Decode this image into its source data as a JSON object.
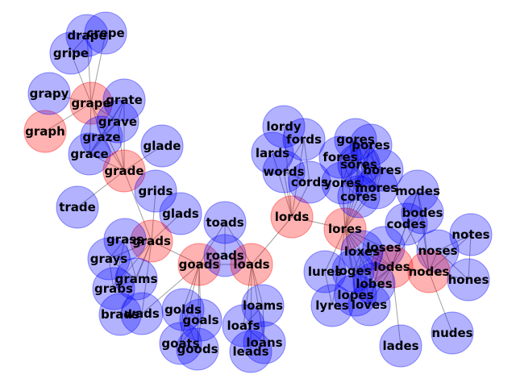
{
  "colors": {
    "highlight": "#ff0000",
    "normal": "#0000ff",
    "edge": "#808080"
  },
  "nodes": [
    {
      "id": "grape",
      "label": "grape",
      "highlight": true
    },
    {
      "id": "graph",
      "label": "graph",
      "highlight": true
    },
    {
      "id": "grapy",
      "label": "grapy",
      "highlight": false
    },
    {
      "id": "gripe",
      "label": "gripe",
      "highlight": false
    },
    {
      "id": "drape",
      "label": "drape",
      "highlight": false
    },
    {
      "id": "crepe",
      "label": "crepe",
      "highlight": false
    },
    {
      "id": "grate",
      "label": "grate",
      "highlight": false
    },
    {
      "id": "grave",
      "label": "grave",
      "highlight": false
    },
    {
      "id": "graze",
      "label": "graze",
      "highlight": false
    },
    {
      "id": "grace",
      "label": "grace",
      "highlight": false
    },
    {
      "id": "grade",
      "label": "grade",
      "highlight": true
    },
    {
      "id": "glade",
      "label": "glade",
      "highlight": false
    },
    {
      "id": "trade",
      "label": "trade",
      "highlight": false
    },
    {
      "id": "grids",
      "label": "grids",
      "highlight": false
    },
    {
      "id": "glads",
      "label": "glads",
      "highlight": false
    },
    {
      "id": "grads",
      "label": "grads",
      "highlight": true
    },
    {
      "id": "grass",
      "label": "grass",
      "highlight": false
    },
    {
      "id": "grays",
      "label": "grays",
      "highlight": false
    },
    {
      "id": "grams",
      "label": "grams",
      "highlight": false
    },
    {
      "id": "grabs",
      "label": "grabs",
      "highlight": false
    },
    {
      "id": "brads",
      "label": "brads",
      "highlight": false
    },
    {
      "id": "wads",
      "label": "wads",
      "highlight": false
    },
    {
      "id": "goads",
      "label": "goads",
      "highlight": true
    },
    {
      "id": "toads",
      "label": "toads",
      "highlight": false
    },
    {
      "id": "roads",
      "label": "roads",
      "highlight": false
    },
    {
      "id": "loads",
      "label": "loads",
      "highlight": true
    },
    {
      "id": "golds",
      "label": "golds",
      "highlight": false
    },
    {
      "id": "goals",
      "label": "goals",
      "highlight": false
    },
    {
      "id": "goats",
      "label": "goats",
      "highlight": false
    },
    {
      "id": "goods",
      "label": "goods",
      "highlight": false
    },
    {
      "id": "loams",
      "label": "loams",
      "highlight": false
    },
    {
      "id": "loafs",
      "label": "loafs",
      "highlight": false
    },
    {
      "id": "loans",
      "label": "loans",
      "highlight": false
    },
    {
      "id": "leads",
      "label": "leads",
      "highlight": false
    },
    {
      "id": "lords",
      "label": "lords",
      "highlight": true
    },
    {
      "id": "lordy",
      "label": "lordy",
      "highlight": false
    },
    {
      "id": "lards",
      "label": "lards",
      "highlight": false
    },
    {
      "id": "words",
      "label": "words",
      "highlight": false
    },
    {
      "id": "fords",
      "label": "fords",
      "highlight": false
    },
    {
      "id": "cords",
      "label": "cords",
      "highlight": false
    },
    {
      "id": "lores",
      "label": "lores",
      "highlight": true
    },
    {
      "id": "gores",
      "label": "gores",
      "highlight": false
    },
    {
      "id": "pores",
      "label": "pores",
      "highlight": false
    },
    {
      "id": "fores",
      "label": "fores",
      "highlight": false
    },
    {
      "id": "sores",
      "label": "sores",
      "highlight": false
    },
    {
      "id": "bores",
      "label": "bores",
      "highlight": false
    },
    {
      "id": "yores",
      "label": "yores",
      "highlight": false
    },
    {
      "id": "mores",
      "label": "mores",
      "highlight": false
    },
    {
      "id": "cores",
      "label": "cores",
      "highlight": false
    },
    {
      "id": "modes",
      "label": "modes",
      "highlight": false
    },
    {
      "id": "bodes",
      "label": "bodes",
      "highlight": false
    },
    {
      "id": "codes",
      "label": "codes",
      "highlight": false
    },
    {
      "id": "notes",
      "label": "notes",
      "highlight": false
    },
    {
      "id": "noses",
      "label": "noses",
      "highlight": false
    },
    {
      "id": "nodes",
      "label": "nodes",
      "highlight": true
    },
    {
      "id": "hones",
      "label": "hones",
      "highlight": false
    },
    {
      "id": "nudes",
      "label": "nudes",
      "highlight": false
    },
    {
      "id": "loses",
      "label": "loses",
      "highlight": false
    },
    {
      "id": "lodes",
      "label": "lodes",
      "highlight": true
    },
    {
      "id": "loxes",
      "label": "loxes",
      "highlight": false
    },
    {
      "id": "loges",
      "label": "loges",
      "highlight": false
    },
    {
      "id": "lures",
      "label": "lures",
      "highlight": false
    },
    {
      "id": "lobes",
      "label": "lobes",
      "highlight": false
    },
    {
      "id": "lopes",
      "label": "lopes",
      "highlight": false
    },
    {
      "id": "loves",
      "label": "loves",
      "highlight": false
    },
    {
      "id": "lyres",
      "label": "lyres",
      "highlight": false
    },
    {
      "id": "lades",
      "label": "lades",
      "highlight": false
    }
  ],
  "edges": [
    [
      "grape",
      "graph"
    ],
    [
      "grape",
      "grapy"
    ],
    [
      "grape",
      "gripe"
    ],
    [
      "grape",
      "drape"
    ],
    [
      "grape",
      "crepe"
    ],
    [
      "grape",
      "grate"
    ],
    [
      "grape",
      "grave"
    ],
    [
      "grape",
      "graze"
    ],
    [
      "grape",
      "grace"
    ],
    [
      "grape",
      "grade"
    ],
    [
      "grate",
      "grave"
    ],
    [
      "grate",
      "graze"
    ],
    [
      "grate",
      "grace"
    ],
    [
      "grate",
      "grade"
    ],
    [
      "grave",
      "graze"
    ],
    [
      "grave",
      "grace"
    ],
    [
      "grave",
      "grade"
    ],
    [
      "graze",
      "grace"
    ],
    [
      "graze",
      "grade"
    ],
    [
      "grace",
      "grade"
    ],
    [
      "gripe",
      "drape"
    ],
    [
      "drape",
      "crepe"
    ],
    [
      "grade",
      "glade"
    ],
    [
      "grade",
      "trade"
    ],
    [
      "grade",
      "grads"
    ],
    [
      "grids",
      "grads"
    ],
    [
      "glads",
      "grads"
    ],
    [
      "grass",
      "grads"
    ],
    [
      "grays",
      "grads"
    ],
    [
      "grams",
      "grads"
    ],
    [
      "grabs",
      "grads"
    ],
    [
      "brads",
      "grads"
    ],
    [
      "wads",
      "grads"
    ],
    [
      "goads",
      "grads"
    ],
    [
      "grass",
      "grays"
    ],
    [
      "grass",
      "grams"
    ],
    [
      "grass",
      "grabs"
    ],
    [
      "grays",
      "grams"
    ],
    [
      "grays",
      "grabs"
    ],
    [
      "grams",
      "grabs"
    ],
    [
      "brads",
      "wads"
    ],
    [
      "wads",
      "goads"
    ],
    [
      "goads",
      "toads"
    ],
    [
      "goads",
      "roads"
    ],
    [
      "goads",
      "loads"
    ],
    [
      "toads",
      "roads"
    ],
    [
      "toads",
      "loads"
    ],
    [
      "roads",
      "loads"
    ],
    [
      "goads",
      "golds"
    ],
    [
      "goads",
      "goals"
    ],
    [
      "goads",
      "goats"
    ],
    [
      "goads",
      "goods"
    ],
    [
      "golds",
      "goals"
    ],
    [
      "golds",
      "goats"
    ],
    [
      "golds",
      "goods"
    ],
    [
      "goals",
      "goats"
    ],
    [
      "goals",
      "goods"
    ],
    [
      "goats",
      "goods"
    ],
    [
      "loads",
      "loams"
    ],
    [
      "loads",
      "loafs"
    ],
    [
      "loads",
      "loans"
    ],
    [
      "loads",
      "leads"
    ],
    [
      "loads",
      "lords"
    ],
    [
      "loams",
      "loafs"
    ],
    [
      "loams",
      "loans"
    ],
    [
      "loafs",
      "loans"
    ],
    [
      "lords",
      "lordy"
    ],
    [
      "lords",
      "lards"
    ],
    [
      "lords",
      "words"
    ],
    [
      "lords",
      "fords"
    ],
    [
      "lords",
      "cords"
    ],
    [
      "lords",
      "lores"
    ],
    [
      "words",
      "fords"
    ],
    [
      "words",
      "cords"
    ],
    [
      "fords",
      "cords"
    ],
    [
      "lores",
      "gores"
    ],
    [
      "lores",
      "pores"
    ],
    [
      "lores",
      "fores"
    ],
    [
      "lores",
      "sores"
    ],
    [
      "lores",
      "bores"
    ],
    [
      "lores",
      "yores"
    ],
    [
      "lores",
      "mores"
    ],
    [
      "lores",
      "cores"
    ],
    [
      "gores",
      "pores"
    ],
    [
      "gores",
      "fores"
    ],
    [
      "gores",
      "sores"
    ],
    [
      "gores",
      "bores"
    ],
    [
      "gores",
      "yores"
    ],
    [
      "gores",
      "mores"
    ],
    [
      "gores",
      "cores"
    ],
    [
      "pores",
      "fores"
    ],
    [
      "pores",
      "sores"
    ],
    [
      "pores",
      "bores"
    ],
    [
      "pores",
      "yores"
    ],
    [
      "pores",
      "mores"
    ],
    [
      "pores",
      "cores"
    ],
    [
      "fores",
      "sores"
    ],
    [
      "fores",
      "bores"
    ],
    [
      "fores",
      "yores"
    ],
    [
      "fores",
      "mores"
    ],
    [
      "fores",
      "cores"
    ],
    [
      "sores",
      "bores"
    ],
    [
      "sores",
      "yores"
    ],
    [
      "sores",
      "mores"
    ],
    [
      "sores",
      "cores"
    ],
    [
      "bores",
      "yores"
    ],
    [
      "bores",
      "mores"
    ],
    [
      "bores",
      "cores"
    ],
    [
      "yores",
      "mores"
    ],
    [
      "yores",
      "cores"
    ],
    [
      "mores",
      "cores"
    ],
    [
      "lores",
      "loses"
    ],
    [
      "lores",
      "lodes"
    ],
    [
      "lores",
      "loxes"
    ],
    [
      "lores",
      "loges"
    ],
    [
      "lores",
      "lures"
    ],
    [
      "lores",
      "lobes"
    ],
    [
      "lores",
      "lopes"
    ],
    [
      "lores",
      "loves"
    ],
    [
      "lores",
      "lyres"
    ],
    [
      "loses",
      "lodes"
    ],
    [
      "loses",
      "loxes"
    ],
    [
      "loses",
      "loges"
    ],
    [
      "loses",
      "lobes"
    ],
    [
      "loses",
      "lopes"
    ],
    [
      "loses",
      "loves"
    ],
    [
      "lodes",
      "loxes"
    ],
    [
      "lodes",
      "loges"
    ],
    [
      "lodes",
      "lobes"
    ],
    [
      "lodes",
      "lopes"
    ],
    [
      "lodes",
      "loves"
    ],
    [
      "loxes",
      "loges"
    ],
    [
      "loxes",
      "lobes"
    ],
    [
      "loxes",
      "lopes"
    ],
    [
      "loxes",
      "loves"
    ],
    [
      "loges",
      "lobes"
    ],
    [
      "loges",
      "lopes"
    ],
    [
      "loges",
      "loves"
    ],
    [
      "lobes",
      "lopes"
    ],
    [
      "lobes",
      "loves"
    ],
    [
      "lopes",
      "loves"
    ],
    [
      "lures",
      "lyres"
    ],
    [
      "lodes",
      "nodes"
    ],
    [
      "lodes",
      "modes"
    ],
    [
      "lodes",
      "bodes"
    ],
    [
      "lodes",
      "codes"
    ],
    [
      "lodes",
      "lades"
    ],
    [
      "modes",
      "bodes"
    ],
    [
      "modes",
      "codes"
    ],
    [
      "bodes",
      "codes"
    ],
    [
      "nodes",
      "modes"
    ],
    [
      "nodes",
      "bodes"
    ],
    [
      "nodes",
      "codes"
    ],
    [
      "nodes",
      "notes"
    ],
    [
      "nodes",
      "noses"
    ],
    [
      "nodes",
      "hones"
    ],
    [
      "nodes",
      "nudes"
    ],
    [
      "notes",
      "noses"
    ],
    [
      "notes",
      "hones"
    ],
    [
      "noses",
      "hones"
    ]
  ]
}
